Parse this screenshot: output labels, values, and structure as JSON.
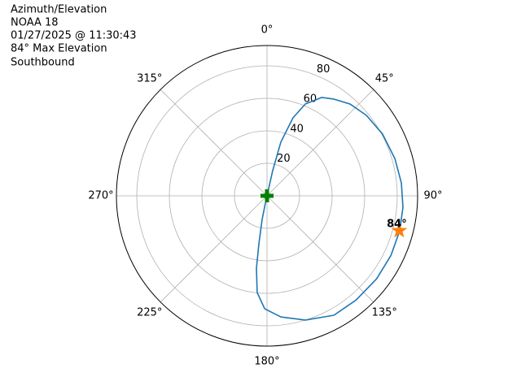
{
  "chart_data": {
    "type": "polar",
    "title": [
      "Azimuth/Elevation",
      "NOAA 18",
      "01/27/2025 @ 11:30:43",
      "84° Max Elevation",
      "Southbound"
    ],
    "theta_zero": "N",
    "theta_direction": "clockwise",
    "thetaticks": [
      {
        "value": 0,
        "label": "0°"
      },
      {
        "value": 45,
        "label": "45°"
      },
      {
        "value": 90,
        "label": "90°"
      },
      {
        "value": 135,
        "label": "135°"
      },
      {
        "value": 180,
        "label": "180°"
      },
      {
        "value": 225,
        "label": "225°"
      },
      {
        "value": 270,
        "label": "270°"
      },
      {
        "value": 315,
        "label": "315°"
      }
    ],
    "rlim": [
      0,
      92.5
    ],
    "rticks": [
      20,
      40,
      60,
      80
    ],
    "grid": true,
    "series": [
      {
        "color": "#1f77b4",
        "marker": "none",
        "theta": [
          0,
          12.7,
          14.4,
          18.4,
          22.6,
          29.0,
          34.6,
          42.1,
          50.9,
          61.8,
          73.7,
          84.5,
          94.8,
          104.8,
          115.7,
          127.2,
          139.5,
          150.8,
          162.9,
          173.5,
          181.2,
          185.8,
          188.3,
          189.6,
          191.7,
          192.5,
          0
        ],
        "r": [
          0,
          15.9,
          34.1,
          50.6,
          61.2,
          69.2,
          72.3,
          76.1,
          78.6,
          80.5,
          81.8,
          82.9,
          83.8,
          84.3,
          84.5,
          84.5,
          84.3,
          84.2,
          80.0,
          75.0,
          69.5,
          59.8,
          45.0,
          29.9,
          14.8,
          4.6,
          0
        ]
      },
      {
        "color": "#ff7f0e",
        "marker": "star",
        "theta": [
          104.8
        ],
        "r": [
          84
        ],
        "value_labels": [
          "84°"
        ]
      },
      {
        "color": "#008000",
        "marker": "plus",
        "theta": [
          0
        ],
        "r": [
          0
        ]
      }
    ]
  }
}
